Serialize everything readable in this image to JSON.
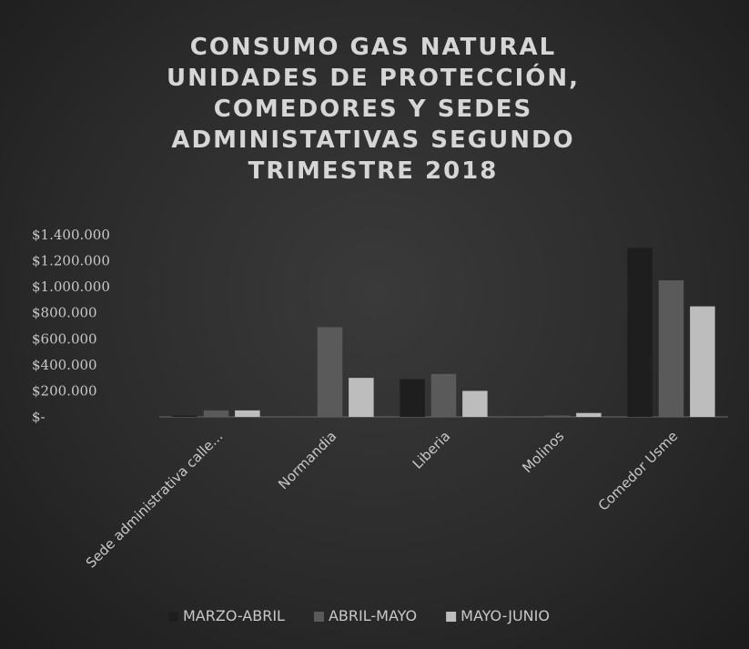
{
  "chart_data": {
    "type": "bar",
    "title": "CONSUMO GAS NATURAL UNIDADES DE PROTECCIÓN, COMEDORES Y SEDES ADMINISTATIVAS SEGUNDO TRIMESTRE 2018",
    "categories": [
      "Sede administrativa calle...",
      "Normandia",
      "Liberia",
      "Molinos",
      "Comedor Usme"
    ],
    "series": [
      {
        "name": "MARZO-ABRIL",
        "color": "#1e1e1e",
        "values": [
          10000,
          0,
          290000,
          0,
          1300000
        ]
      },
      {
        "name": "ABRIL-MAYO",
        "color": "#5a5a5a",
        "values": [
          50000,
          690000,
          330000,
          10000,
          1050000
        ]
      },
      {
        "name": "MAYO-JUNIO",
        "color": "#bdbdbd",
        "values": [
          50000,
          300000,
          200000,
          30000,
          850000
        ]
      }
    ],
    "ylim": [
      0,
      1400000
    ],
    "yticks": [
      {
        "value": 0,
        "label": "$-"
      },
      {
        "value": 200000,
        "label": "$200.000"
      },
      {
        "value": 400000,
        "label": "$400.000"
      },
      {
        "value": 600000,
        "label": "$600.000"
      },
      {
        "value": 800000,
        "label": "$800.000"
      },
      {
        "value": 1000000,
        "label": "$1.000.000"
      },
      {
        "value": 1200000,
        "label": "$1.200.000"
      },
      {
        "value": 1400000,
        "label": "$1.400.000"
      }
    ],
    "grid": false,
    "legend": "bottom"
  }
}
